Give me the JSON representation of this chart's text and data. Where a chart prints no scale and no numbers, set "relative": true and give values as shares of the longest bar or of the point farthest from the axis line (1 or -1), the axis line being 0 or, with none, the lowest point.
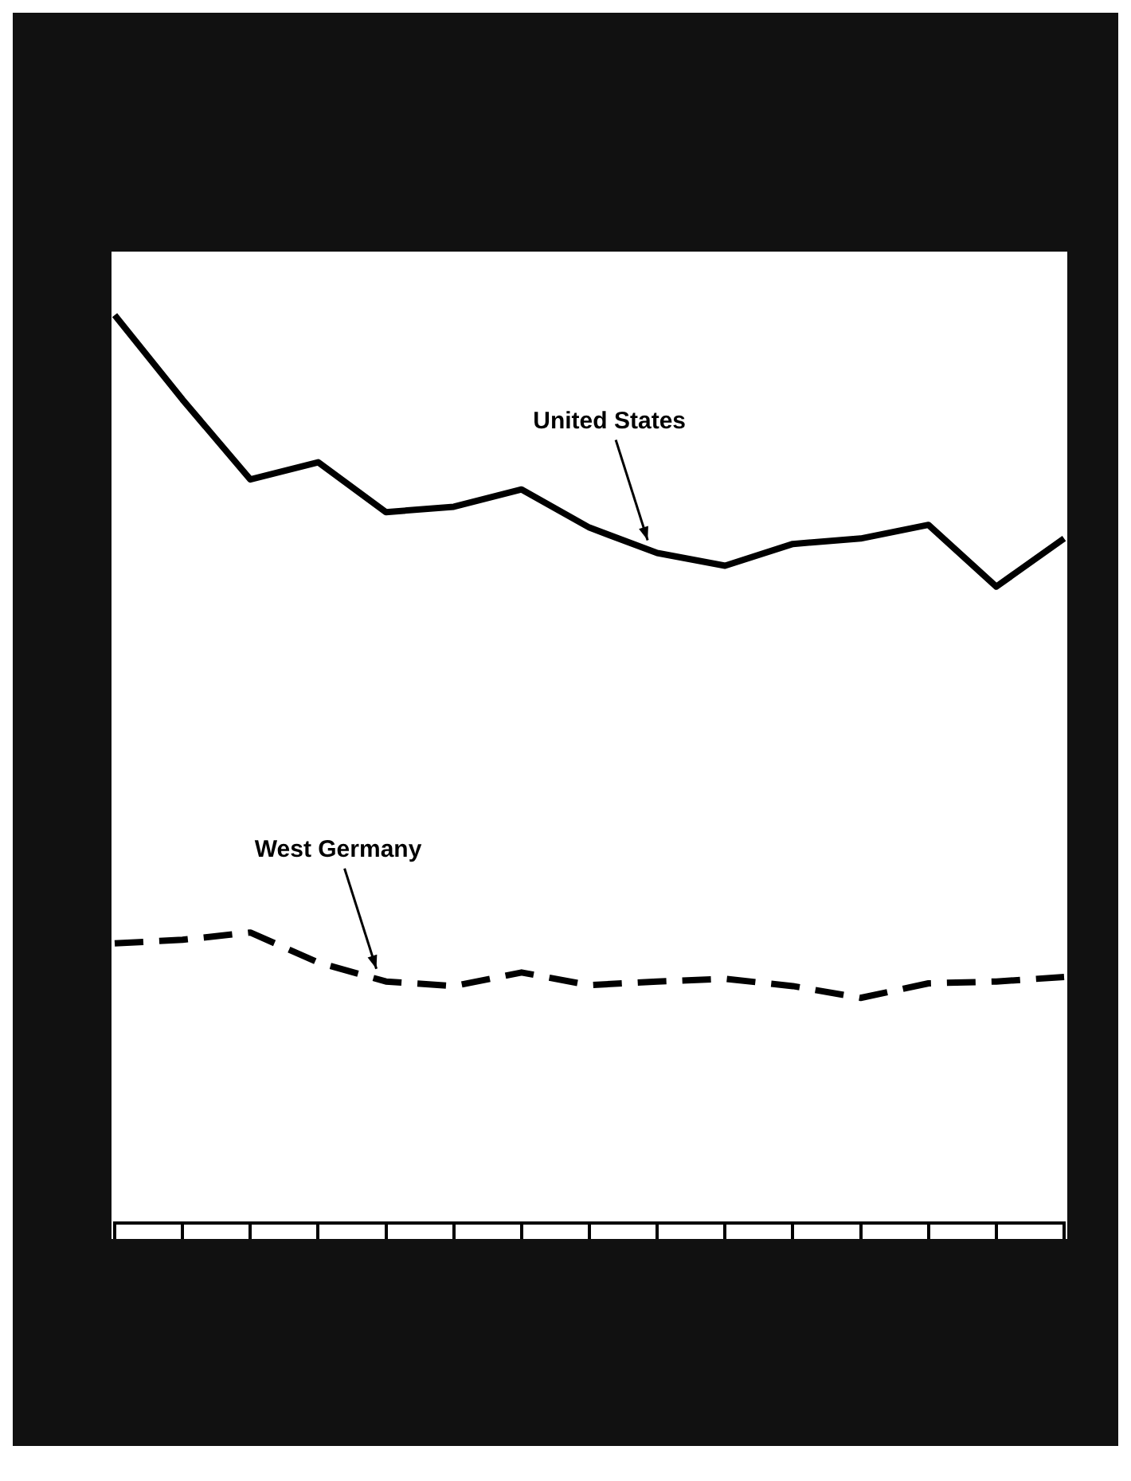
{
  "chart_data": {
    "type": "line",
    "relative": true,
    "legend": false,
    "grid": false,
    "marker": "none",
    "tick_labels": false,
    "categories": [
      null,
      null,
      null,
      null,
      null,
      null,
      null,
      null,
      null,
      null,
      null,
      null,
      null,
      null,
      null
    ],
    "series": [
      {
        "name": "United States",
        "color": "#000000",
        "line_style": "solid",
        "values": [
          1,
          0.907,
          0.819,
          0.838,
          0.783,
          0.789,
          0.808,
          0.766,
          0.738,
          0.724,
          0.748,
          0.754,
          0.769,
          0.701,
          0.754
        ]
      },
      {
        "name": "West Germany",
        "color": "#000000",
        "line_style": "dashed",
        "values": [
          0.308,
          0.312,
          0.32,
          0.287,
          0.266,
          0.261,
          0.276,
          0.262,
          0.266,
          0.269,
          0.261,
          0.248,
          0.264,
          0.266,
          0.271
        ]
      }
    ]
  }
}
